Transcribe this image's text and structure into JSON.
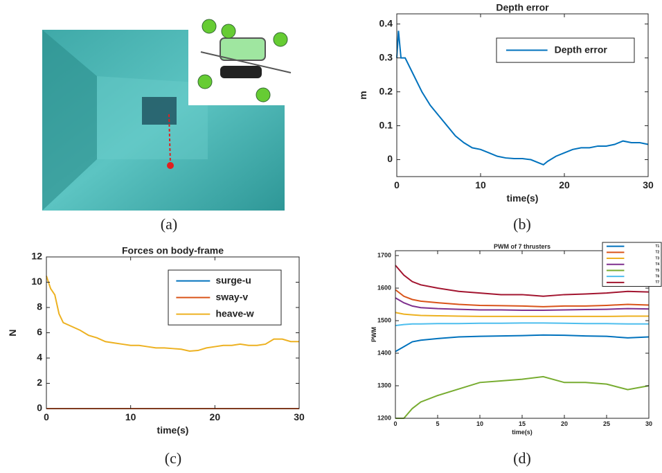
{
  "captions": [
    "(a)",
    "(b)",
    "(c)",
    "(d)"
  ],
  "chart_data": [
    {
      "type": "line",
      "title": "Depth error",
      "xlabel": "time(s)",
      "ylabel": "m",
      "xlim": [
        0,
        30
      ],
      "xticks": [
        0,
        10,
        20,
        30
      ],
      "ylim": [
        -0.05,
        0.43
      ],
      "yticks": [
        0,
        0.1,
        0.2,
        0.3,
        0.4
      ],
      "x": [
        0,
        0.2,
        0.5,
        1,
        2,
        3,
        4,
        5,
        6,
        7,
        8,
        9,
        10,
        11,
        12,
        13,
        14,
        15,
        16,
        17,
        17.5,
        18,
        19,
        20,
        21,
        22,
        23,
        24,
        25,
        26,
        27,
        28,
        29,
        30
      ],
      "legend": "upper right",
      "series": [
        {
          "name": "Depth error",
          "color": "#0072bd",
          "values": [
            0.3,
            0.38,
            0.3,
            0.3,
            0.25,
            0.2,
            0.16,
            0.13,
            0.1,
            0.07,
            0.05,
            0.035,
            0.03,
            0.02,
            0.01,
            0.005,
            0.003,
            0.003,
            0,
            -0.01,
            -0.015,
            -0.005,
            0.01,
            0.02,
            0.03,
            0.035,
            0.035,
            0.04,
            0.04,
            0.045,
            0.055,
            0.05,
            0.05,
            0.045
          ]
        }
      ]
    },
    {
      "type": "line",
      "title": "Forces on body-frame",
      "xlabel": "time(s)",
      "ylabel": "N",
      "xlim": [
        0,
        30
      ],
      "xticks": [
        0,
        10,
        20,
        30
      ],
      "ylim": [
        0,
        12
      ],
      "yticks": [
        0,
        2,
        4,
        6,
        8,
        10,
        12
      ],
      "x": [
        0,
        0.5,
        1,
        1.5,
        2,
        3,
        4,
        5,
        6,
        7,
        8,
        9,
        10,
        11,
        12,
        13,
        14,
        15,
        16,
        17,
        18,
        19,
        20,
        21,
        22,
        23,
        24,
        25,
        26,
        27,
        28,
        29,
        30
      ],
      "legend": "upper right",
      "series": [
        {
          "name": "surge-u",
          "color": "#0072bd",
          "values": [
            0,
            0,
            0,
            0,
            0,
            0,
            0,
            0,
            0,
            0,
            0,
            0,
            0,
            0,
            0,
            0,
            0,
            0,
            0,
            0,
            0,
            0,
            0,
            0,
            0,
            0,
            0,
            0,
            0,
            0,
            0,
            0,
            0
          ]
        },
        {
          "name": "sway-v",
          "color": "#d95319",
          "values": [
            0,
            0,
            0,
            0,
            0,
            0,
            0,
            0,
            0,
            0,
            0,
            0,
            0,
            0,
            0,
            0,
            0,
            0,
            0,
            0,
            0,
            0,
            0,
            0,
            0,
            0,
            0,
            0,
            0,
            0,
            0,
            0,
            0
          ]
        },
        {
          "name": "heave-w",
          "color": "#edb120",
          "values": [
            10.5,
            9.5,
            9,
            7.5,
            6.8,
            6.5,
            6.2,
            5.8,
            5.6,
            5.3,
            5.2,
            5.1,
            5,
            5,
            4.9,
            4.8,
            4.8,
            4.75,
            4.7,
            4.55,
            4.6,
            4.8,
            4.9,
            5,
            5,
            5.1,
            5,
            5,
            5.1,
            5.5,
            5.5,
            5.3,
            5.3
          ]
        }
      ]
    },
    {
      "type": "line",
      "title": "PWM of 7 thrusters",
      "xlabel": "time(s)",
      "ylabel": "PWM",
      "xlim": [
        0,
        30
      ],
      "xticks": [
        0,
        5,
        10,
        15,
        20,
        25,
        30
      ],
      "ylim": [
        1200,
        1715
      ],
      "yticks": [
        1200,
        1300,
        1400,
        1500,
        1600,
        1700
      ],
      "x": [
        0,
        1,
        2,
        3,
        5,
        7.5,
        10,
        12.5,
        15,
        17.5,
        20,
        22.5,
        25,
        27.5,
        30
      ],
      "legend": "outside upper right",
      "series": [
        {
          "name": "T1",
          "color": "#0072bd",
          "values": [
            1405,
            1420,
            1435,
            1440,
            1445,
            1450,
            1452,
            1453,
            1454,
            1456,
            1455,
            1453,
            1452,
            1447,
            1450
          ]
        },
        {
          "name": "T2",
          "color": "#d95319",
          "values": [
            1595,
            1575,
            1565,
            1560,
            1555,
            1550,
            1547,
            1546,
            1545,
            1543,
            1545,
            1545,
            1547,
            1550,
            1548
          ]
        },
        {
          "name": "T3",
          "color": "#edb120",
          "values": [
            1525,
            1520,
            1518,
            1516,
            1515,
            1514,
            1513,
            1513,
            1513,
            1513,
            1513,
            1513,
            1513,
            1514,
            1514
          ]
        },
        {
          "name": "T4",
          "color": "#7e2f8e",
          "values": [
            1570,
            1555,
            1545,
            1540,
            1537,
            1535,
            1533,
            1533,
            1532,
            1532,
            1533,
            1534,
            1535,
            1537,
            1536
          ]
        },
        {
          "name": "T5",
          "color": "#77ac30",
          "values": [
            1200,
            1200,
            1230,
            1250,
            1270,
            1290,
            1310,
            1315,
            1320,
            1328,
            1310,
            1310,
            1305,
            1288,
            1300
          ]
        },
        {
          "name": "T6",
          "color": "#4dbeee",
          "values": [
            1485,
            1488,
            1490,
            1490,
            1491,
            1491,
            1492,
            1492,
            1493,
            1493,
            1492,
            1491,
            1491,
            1490,
            1490
          ]
        },
        {
          "name": "T7",
          "color": "#a2142f",
          "values": [
            1670,
            1640,
            1620,
            1610,
            1600,
            1590,
            1585,
            1580,
            1580,
            1575,
            1580,
            1582,
            1585,
            1590,
            1588
          ]
        }
      ]
    }
  ]
}
